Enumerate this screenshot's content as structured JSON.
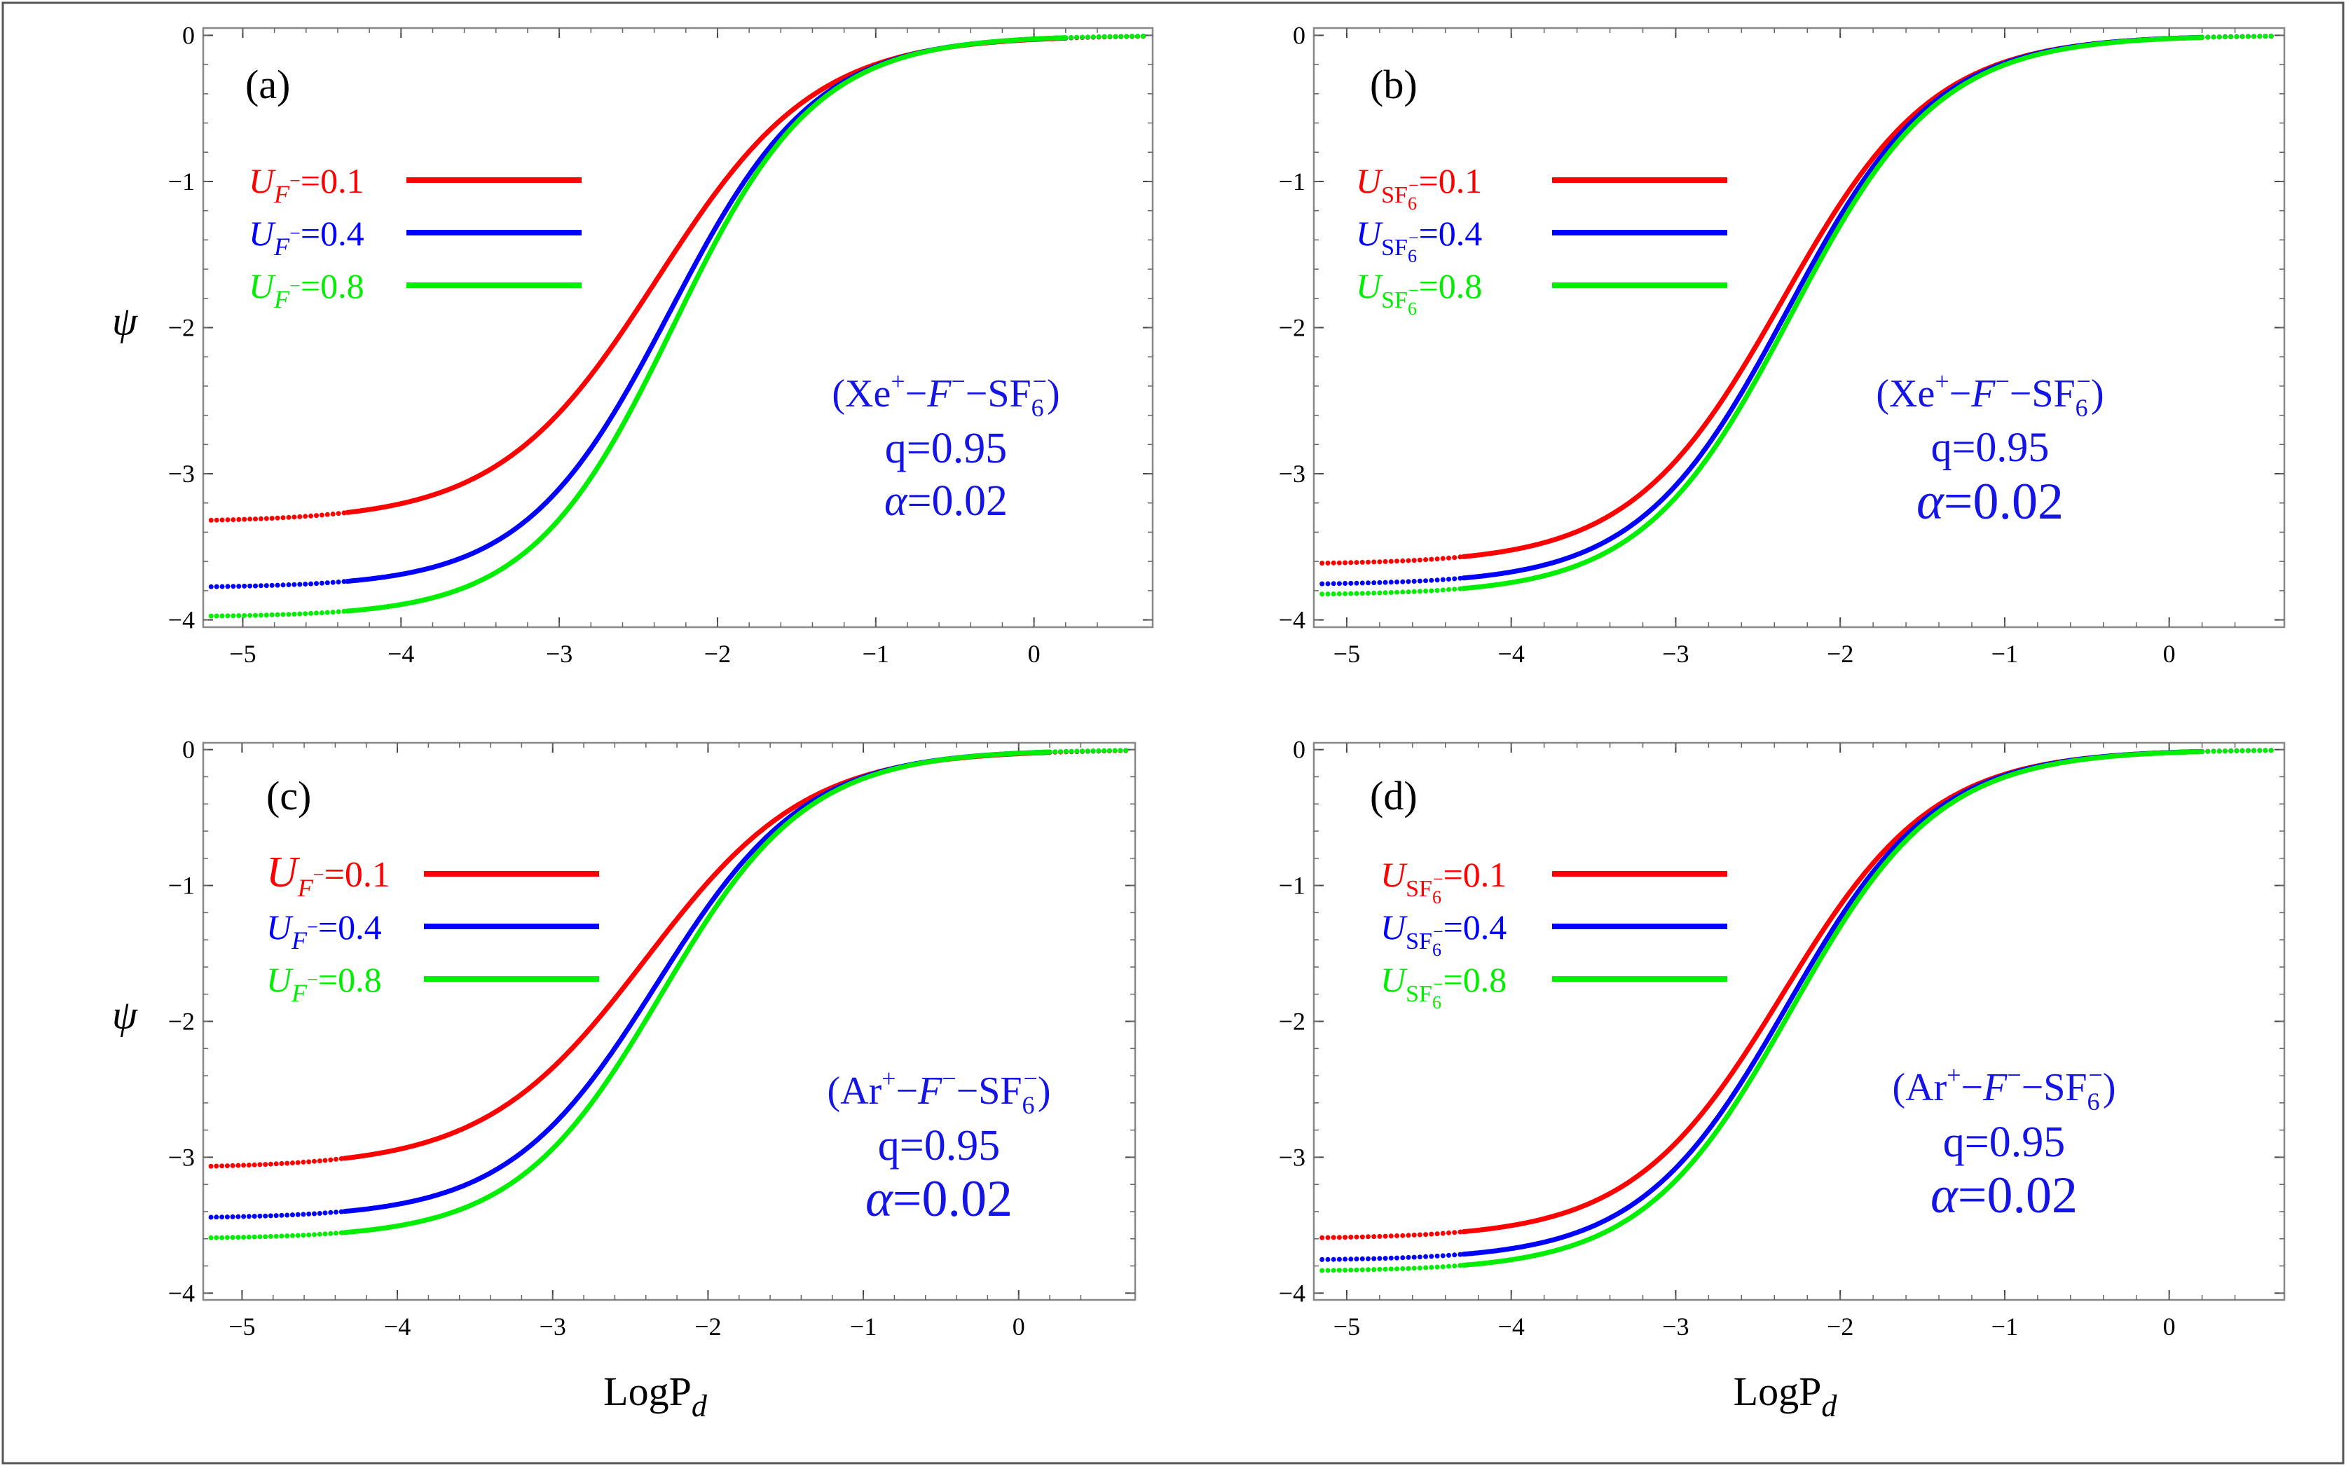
{
  "chart_data": [
    {
      "type": "line",
      "panel_label": "(a)",
      "system": {
        "main": "(Xe",
        "sup1": "+",
        "mid1": "−",
        "anion": "F",
        "sup2": "−",
        "mid2": "−SF",
        "sub": "6",
        "sup3": "−",
        "close": ")"
      },
      "q_text": "q=0.95",
      "alpha_text": "α=0.02",
      "legend_kind": "F",
      "xlim": [
        -5.25,
        0.75
      ],
      "ylim": [
        -4.05,
        0.05
      ],
      "xticks": [
        -5,
        -4,
        -3,
        -2,
        -1,
        0
      ],
      "yticks": [
        0,
        -1,
        -2,
        -3,
        -4
      ],
      "xtick_labels": [
        "−5",
        "−4",
        "−3",
        "−2",
        "−1",
        "0"
      ],
      "ytick_labels": [
        "0",
        "−1",
        "−2",
        "−3",
        "−4"
      ],
      "ylabel": "ψ",
      "series": [
        {
          "name": "U_F−=0.1",
          "value_text": "=0.1",
          "color": "#ff0000",
          "ymin": -3.33,
          "center": -2.38,
          "width": 0.5
        },
        {
          "name": "U_F−=0.4",
          "value_text": "=0.4",
          "color": "#0000ff",
          "ymin": -3.78,
          "center": -2.3,
          "width": 0.46
        },
        {
          "name": "U_F−=0.8",
          "value_text": "=0.8",
          "color": "#00ee00",
          "ymin": -3.98,
          "center": -2.28,
          "width": 0.45
        }
      ]
    },
    {
      "type": "line",
      "panel_label": "(b)",
      "system": {
        "main": "(Xe",
        "sup1": "+",
        "mid1": "−",
        "anion": "F",
        "sup2": "−",
        "mid2": "−SF",
        "sub": "6",
        "sup3": "−",
        "close": ")"
      },
      "q_text": "q=0.95",
      "alpha_text": "α=0.02",
      "legend_kind": "SF",
      "xlim": [
        -5.2,
        0.7
      ],
      "ylim": [
        -4.05,
        0.05
      ],
      "xticks": [
        -5,
        -4,
        -3,
        -2,
        -1,
        0
      ],
      "yticks": [
        0,
        -1,
        -2,
        -3,
        -4
      ],
      "xtick_labels": [
        "−5",
        "−4",
        "−3",
        "−2",
        "−1",
        "0"
      ],
      "ytick_labels": [
        "0",
        "−1",
        "−2",
        "−3",
        "−4"
      ],
      "ylabel": "",
      "series": [
        {
          "name": "U_SF6−=0.1",
          "value_text": "=0.1",
          "color": "#ff0000",
          "ymin": -3.62,
          "center": -2.35,
          "width": 0.46
        },
        {
          "name": "U_SF6−=0.4",
          "value_text": "=0.4",
          "color": "#0000ff",
          "ymin": -3.76,
          "center": -2.32,
          "width": 0.45
        },
        {
          "name": "U_SF6−=0.8",
          "value_text": "=0.8",
          "color": "#00ee00",
          "ymin": -3.83,
          "center": -2.3,
          "width": 0.45
        }
      ]
    },
    {
      "type": "line",
      "panel_label": "(c)",
      "system": {
        "main": "(Ar",
        "sup1": "+",
        "mid1": "−",
        "anion": "F",
        "sup2": "−",
        "mid2": "−SF",
        "sub": "6",
        "sup3": "−",
        "close": ")"
      },
      "q_text": "q=0.95",
      "alpha_text": "α=0.02",
      "legend_kind": "F",
      "xlim": [
        -5.25,
        0.75
      ],
      "ylim": [
        -4.05,
        0.05
      ],
      "xticks": [
        -5,
        -4,
        -3,
        -2,
        -1,
        0
      ],
      "yticks": [
        0,
        -1,
        -2,
        -3,
        -4
      ],
      "xtick_labels": [
        "−5",
        "−4",
        "−3",
        "−2",
        "−1",
        "0"
      ],
      "ytick_labels": [
        "0",
        "−1",
        "−2",
        "−3",
        "−4"
      ],
      "ylabel": "ψ",
      "xlabel_main": "LogP",
      "xlabel_sub": "d",
      "series": [
        {
          "name": "U_F−=0.1",
          "value_text": "=0.1",
          "color": "#ff0000",
          "ymin": -3.08,
          "center": -2.4,
          "width": 0.52
        },
        {
          "name": "U_F−=0.4",
          "value_text": "=0.4",
          "color": "#0000ff",
          "ymin": -3.45,
          "center": -2.33,
          "width": 0.48
        },
        {
          "name": "U_F−=0.8",
          "value_text": "=0.8",
          "color": "#00ee00",
          "ymin": -3.6,
          "center": -2.3,
          "width": 0.47
        }
      ]
    },
    {
      "type": "line",
      "panel_label": "(d)",
      "system": {
        "main": "(Ar",
        "sup1": "+",
        "mid1": "−",
        "anion": "F",
        "sup2": "−",
        "mid2": "−SF",
        "sub": "6",
        "sup3": "−",
        "close": ")"
      },
      "q_text": "q=0.95",
      "alpha_text": "α=0.02",
      "legend_kind": "SF",
      "xlim": [
        -5.2,
        0.7
      ],
      "ylim": [
        -4.05,
        0.05
      ],
      "xticks": [
        -5,
        -4,
        -3,
        -2,
        -1,
        0
      ],
      "yticks": [
        0,
        -1,
        -2,
        -3,
        -4
      ],
      "xtick_labels": [
        "−5",
        "−4",
        "−3",
        "−2",
        "−1",
        "0"
      ],
      "ytick_labels": [
        "0",
        "−1",
        "−2",
        "−3",
        "−4"
      ],
      "ylabel": "",
      "xlabel_main": "LogP",
      "xlabel_sub": "d",
      "series": [
        {
          "name": "U_SF6−=0.1",
          "value_text": "=0.1",
          "color": "#ff0000",
          "ymin": -3.6,
          "center": -2.35,
          "width": 0.46
        },
        {
          "name": "U_SF6−=0.4",
          "value_text": "=0.4",
          "color": "#0000ff",
          "ymin": -3.76,
          "center": -2.32,
          "width": 0.45
        },
        {
          "name": "U_SF6−=0.8",
          "value_text": "=0.8",
          "color": "#00ee00",
          "ymin": -3.84,
          "center": -2.3,
          "width": 0.45
        }
      ]
    }
  ],
  "legend_symbol": {
    "U": "U",
    "F": "F",
    "sup_minus": "−",
    "SF": "SF",
    "sub6": "6"
  }
}
